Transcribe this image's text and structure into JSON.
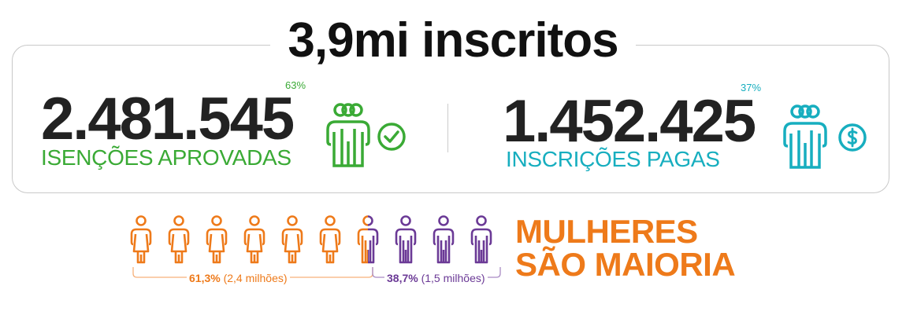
{
  "title": "3,9mi inscritos",
  "colors": {
    "green": "#3aaa35",
    "teal": "#17aebf",
    "orange": "#ee7a1a",
    "purple": "#6b3a96"
  },
  "left": {
    "percent": "63%",
    "number": "2.481.545",
    "label": "ISENÇÕES APROVADAS",
    "icon": "people-group-icon",
    "badge_icon": "check-circle-icon"
  },
  "right": {
    "percent": "37%",
    "number": "1.452.425",
    "label": "INSCRIÇÕES PAGAS",
    "icon": "people-group-icon",
    "badge_icon": "dollar-circle-icon"
  },
  "gender": {
    "women": {
      "percent": "61,3%",
      "detail": "(2,4 milhões)",
      "share": 0.613
    },
    "men": {
      "percent": "38,7%",
      "detail": "(1,5 milhões)",
      "share": 0.387
    },
    "headline_line1": "MULHERES",
    "headline_line2": "SÃO MAIORIA"
  }
}
